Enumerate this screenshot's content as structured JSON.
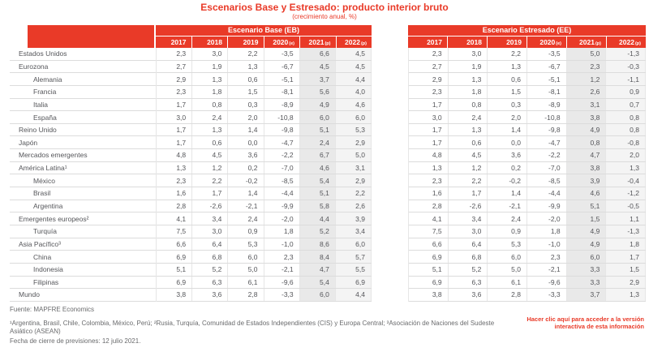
{
  "title": "Escenarios Base y Estresado: producto interior bruto",
  "subtitle": "(crecimiento anual, %)",
  "colors": {
    "brand_red": "#e93a28",
    "col_2021_bg": "#e9e9e9",
    "col_2022_bg": "#f4f4f4",
    "text_gray": "#55565a"
  },
  "base_header": "Escenario Base (EB)",
  "stressed_header": "Escenario Estresado (EE)",
  "years": [
    {
      "label": "2017",
      "suffix": ""
    },
    {
      "label": "2018",
      "suffix": ""
    },
    {
      "label": "2019",
      "suffix": ""
    },
    {
      "label": "2020",
      "suffix": "(e)"
    },
    {
      "label": "2021",
      "suffix": "(p)"
    },
    {
      "label": "2022",
      "suffix": "(p)"
    }
  ],
  "chart_data": {
    "type": "table",
    "title": "Escenarios Base y Estresado: producto interior bruto",
    "unit": "crecimiento anual, %",
    "columns": [
      "2017",
      "2018",
      "2019",
      "2020(e)",
      "2021(p)",
      "2022(p)"
    ],
    "series_names": [
      "Escenario Base (EB)",
      "Escenario Estresado (EE)"
    ],
    "rows": [
      {
        "label": "Estados Unidos",
        "indent": 0,
        "base": [
          "2,3",
          "3,0",
          "2,2",
          "-3,5",
          "6,6",
          "4,5"
        ],
        "stressed": [
          "2,3",
          "3,0",
          "2,2",
          "-3,5",
          "5,0",
          "-1,3"
        ]
      },
      {
        "label": "Eurozona",
        "indent": 0,
        "base": [
          "2,7",
          "1,9",
          "1,3",
          "-6,7",
          "4,5",
          "4,5"
        ],
        "stressed": [
          "2,7",
          "1,9",
          "1,3",
          "-6,7",
          "2,3",
          "-0,3"
        ]
      },
      {
        "label": "Alemania",
        "indent": 1,
        "base": [
          "2,9",
          "1,3",
          "0,6",
          "-5,1",
          "3,7",
          "4,4"
        ],
        "stressed": [
          "2,9",
          "1,3",
          "0,6",
          "-5,1",
          "1,2",
          "-1,1"
        ]
      },
      {
        "label": "Francia",
        "indent": 1,
        "base": [
          "2,3",
          "1,8",
          "1,5",
          "-8,1",
          "5,6",
          "4,0"
        ],
        "stressed": [
          "2,3",
          "1,8",
          "1,5",
          "-8,1",
          "2,6",
          "0,9"
        ]
      },
      {
        "label": "Italia",
        "indent": 1,
        "base": [
          "1,7",
          "0,8",
          "0,3",
          "-8,9",
          "4,9",
          "4,6"
        ],
        "stressed": [
          "1,7",
          "0,8",
          "0,3",
          "-8,9",
          "3,1",
          "0,7"
        ]
      },
      {
        "label": "España",
        "indent": 1,
        "base": [
          "3,0",
          "2,4",
          "2,0",
          "-10,8",
          "6,0",
          "6,0"
        ],
        "stressed": [
          "3,0",
          "2,4",
          "2,0",
          "-10,8",
          "3,8",
          "0,8"
        ]
      },
      {
        "label": "Reino Unido",
        "indent": 0,
        "base": [
          "1,7",
          "1,3",
          "1,4",
          "-9,8",
          "5,1",
          "5,3"
        ],
        "stressed": [
          "1,7",
          "1,3",
          "1,4",
          "-9,8",
          "4,9",
          "0,8"
        ]
      },
      {
        "label": "Japón",
        "indent": 0,
        "base": [
          "1,7",
          "0,6",
          "0,0",
          "-4,7",
          "2,4",
          "2,9"
        ],
        "stressed": [
          "1,7",
          "0,6",
          "0,0",
          "-4,7",
          "0,8",
          "-0,8"
        ]
      },
      {
        "label": "Mercados emergentes",
        "indent": 0,
        "base": [
          "4,8",
          "4,5",
          "3,6",
          "-2,2",
          "6,7",
          "5,0"
        ],
        "stressed": [
          "4,8",
          "4,5",
          "3,6",
          "-2,2",
          "4,7",
          "2,0"
        ]
      },
      {
        "label": "América Latina¹",
        "indent": 0,
        "base": [
          "1,3",
          "1,2",
          "0,2",
          "-7,0",
          "4,6",
          "3,1"
        ],
        "stressed": [
          "1,3",
          "1,2",
          "0,2",
          "-7,0",
          "3,8",
          "1,3"
        ]
      },
      {
        "label": "México",
        "indent": 1,
        "base": [
          "2,3",
          "2,2",
          "-0,2",
          "-8,5",
          "5,4",
          "2,9"
        ],
        "stressed": [
          "2,3",
          "2,2",
          "-0,2",
          "-8,5",
          "3,9",
          "-0,4"
        ]
      },
      {
        "label": "Brasil",
        "indent": 1,
        "base": [
          "1,6",
          "1,7",
          "1,4",
          "-4,4",
          "5,1",
          "2,2"
        ],
        "stressed": [
          "1,6",
          "1,7",
          "1,4",
          "-4,4",
          "4,6",
          "-1,2"
        ]
      },
      {
        "label": "Argentina",
        "indent": 1,
        "base": [
          "2,8",
          "-2,6",
          "-2,1",
          "-9,9",
          "5,8",
          "2,6"
        ],
        "stressed": [
          "2,8",
          "-2,6",
          "-2,1",
          "-9,9",
          "5,1",
          "-0,5"
        ]
      },
      {
        "label": "Emergentes europeos²",
        "indent": 0,
        "base": [
          "4,1",
          "3,4",
          "2,4",
          "-2,0",
          "4,4",
          "3,9"
        ],
        "stressed": [
          "4,1",
          "3,4",
          "2,4",
          "-2,0",
          "1,5",
          "1,1"
        ]
      },
      {
        "label": "Turquía",
        "indent": 1,
        "base": [
          "7,5",
          "3,0",
          "0,9",
          "1,8",
          "5,2",
          "3,4"
        ],
        "stressed": [
          "7,5",
          "3,0",
          "0,9",
          "1,8",
          "4,9",
          "-1,3"
        ]
      },
      {
        "label": "Asia Pacífico³",
        "indent": 0,
        "base": [
          "6,6",
          "6,4",
          "5,3",
          "-1,0",
          "8,6",
          "6,0"
        ],
        "stressed": [
          "6,6",
          "6,4",
          "5,3",
          "-1,0",
          "4,9",
          "1,8"
        ]
      },
      {
        "label": "China",
        "indent": 1,
        "base": [
          "6,9",
          "6,8",
          "6,0",
          "2,3",
          "8,4",
          "5,7"
        ],
        "stressed": [
          "6,9",
          "6,8",
          "6,0",
          "2,3",
          "6,0",
          "1,7"
        ]
      },
      {
        "label": "Indonesia",
        "indent": 1,
        "base": [
          "5,1",
          "5,2",
          "5,0",
          "-2,1",
          "4,7",
          "5,5"
        ],
        "stressed": [
          "5,1",
          "5,2",
          "5,0",
          "-2,1",
          "3,3",
          "1,5"
        ]
      },
      {
        "label": "Filipinas",
        "indent": 1,
        "base": [
          "6,9",
          "6,3",
          "6,1",
          "-9,6",
          "5,4",
          "6,9"
        ],
        "stressed": [
          "6,9",
          "6,3",
          "6,1",
          "-9,6",
          "3,3",
          "2,9"
        ]
      },
      {
        "label": "Mundo",
        "indent": 0,
        "base": [
          "3,8",
          "3,6",
          "2,8",
          "-3,3",
          "6,0",
          "4,4"
        ],
        "stressed": [
          "3,8",
          "3,6",
          "2,8",
          "-3,3",
          "3,7",
          "1,3"
        ]
      }
    ]
  },
  "footer": {
    "source": "Fuente: MAPFRE Economics",
    "footnote": "¹Argentina, Brasil, Chile, Colombia, México, Perú; ²Rusia, Turquía, Comunidad de Estados Independientes (CIS) y Europa Central; ³Asociación de Naciones del Sudeste Asiático (ASEAN)",
    "closing_date": "Fecha de cierre de previsiones: 12 julio 2021.",
    "interactive_link": "Hacer clic aquí para acceder a la versión interactiva de esta información"
  }
}
